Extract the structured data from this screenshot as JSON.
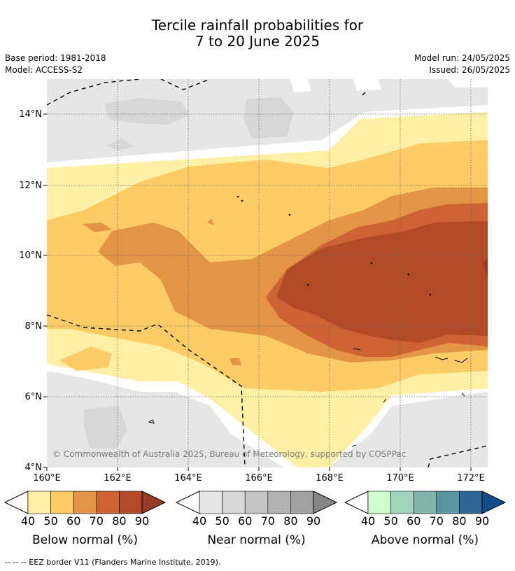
{
  "title": {
    "line1": "Tercile rainfall probabilities for",
    "line2": "7 to 20 June 2025"
  },
  "meta": {
    "base_period": "Base period: 1981-2018",
    "model": "Model: ACCESS-S2",
    "model_run": "Model run: 24/05/2025",
    "issued": "Issued: 26/05/2025"
  },
  "map": {
    "lat_labels": [
      "4°N",
      "6°N",
      "8°N",
      "10°N",
      "12°N",
      "14°N"
    ],
    "lon_labels": [
      "160°E",
      "162°E",
      "164°E",
      "166°E",
      "168°E",
      "170°E",
      "172°E"
    ],
    "copyright": "© Commonwealth of Australia 2025, Bureau of Meteorology, supported by COSPPac"
  },
  "legend": {
    "below": {
      "label": "Below normal (%)",
      "ticks": [
        "40",
        "50",
        "60",
        "70",
        "80",
        "90"
      ],
      "colors": [
        "#fff0a5",
        "#fdcc66",
        "#e39445",
        "#cd6232",
        "#b14a27",
        "#993a22"
      ]
    },
    "near": {
      "label": "Near normal (%)",
      "ticks": [
        "40",
        "50",
        "60",
        "70",
        "80",
        "90"
      ],
      "colors": [
        "#e6e6e6",
        "#d7d7d7",
        "#c5c5c5",
        "#b2b2b2",
        "#a0a0a0",
        "#878787"
      ]
    },
    "above": {
      "label": "Above normal (%)",
      "ticks": [
        "40",
        "50",
        "60",
        "70",
        "80",
        "90"
      ],
      "colors": [
        "#ccffcc",
        "#a1d6bd",
        "#80b5ae",
        "#5b949f",
        "#2e6696",
        "#124f8a"
      ]
    }
  },
  "footer": "--  --  -- EEZ border V11 (Flanders Marine Institute, 2019)."
}
